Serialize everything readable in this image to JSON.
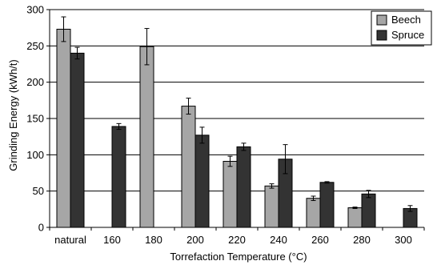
{
  "chart_data": {
    "type": "bar",
    "xlabel": "Torrefaction Temperature (°C)",
    "ylabel": "Grinding Energy (kWh/t)",
    "ylim": [
      0,
      300
    ],
    "yticks": [
      0,
      50,
      100,
      150,
      200,
      250,
      300
    ],
    "grid": true,
    "legend_position": "top-right",
    "categories": [
      "natural",
      "160",
      "180",
      "200",
      "220",
      "240",
      "260",
      "280",
      "300"
    ],
    "series": [
      {
        "name": "Beech",
        "color": "#a6a6a6",
        "values": [
          273,
          null,
          249,
          167,
          91,
          57,
          40,
          27,
          null
        ],
        "errors": [
          17,
          null,
          25,
          11,
          7,
          3,
          3,
          1,
          null
        ]
      },
      {
        "name": "Spruce",
        "color": "#333333",
        "values": [
          240,
          139,
          null,
          127,
          111,
          94,
          62,
          46,
          26
        ],
        "errors": [
          8,
          4,
          null,
          11,
          5,
          20,
          1,
          5,
          4
        ]
      }
    ]
  }
}
